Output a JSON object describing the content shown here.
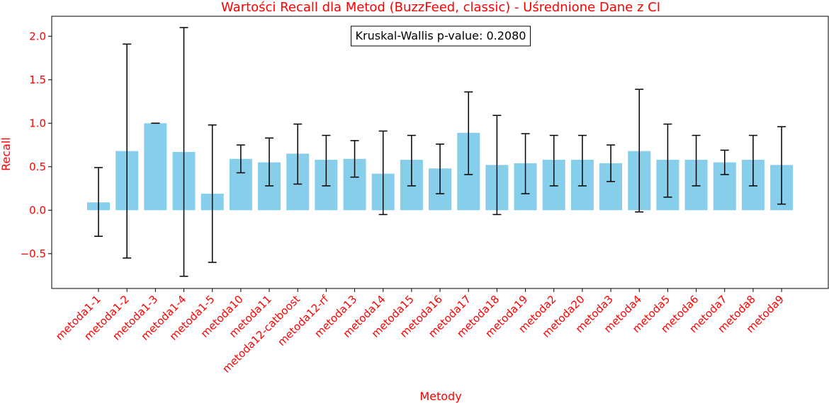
{
  "chart_data": {
    "type": "bar",
    "title": "Wartości Recall dla Metod (BuzzFeed, classic) - Uśrednione Dane z CI",
    "xlabel": "Metody",
    "ylabel": "Recall",
    "annotation": "Kruskal-Wallis p-value: 0.2080",
    "ylim": [
      -0.9,
      2.23
    ],
    "yticks": [
      -0.5,
      0.0,
      0.5,
      1.0,
      1.5,
      2.0
    ],
    "ytick_labels": [
      "−0.5",
      "0.0",
      "0.5",
      "1.0",
      "1.5",
      "2.0"
    ],
    "bar_color": "#87ceeb",
    "text_color": "#ff0000",
    "categories": [
      "metoda1-1",
      "metoda1-2",
      "metoda1-3",
      "metoda1-4",
      "metoda1-5",
      "metoda10",
      "metoda11",
      "metoda12-catboost",
      "metoda12-rf",
      "metoda13",
      "metoda14",
      "metoda15",
      "metoda16",
      "metoda17",
      "metoda18",
      "metoda19",
      "metoda2",
      "metoda20",
      "metoda3",
      "metoda4",
      "metoda5",
      "metoda6",
      "metoda7",
      "metoda8",
      "metoda9"
    ],
    "values": [
      0.09,
      0.68,
      1.0,
      0.67,
      0.19,
      0.59,
      0.55,
      0.65,
      0.58,
      0.59,
      0.42,
      0.58,
      0.48,
      0.89,
      0.52,
      0.54,
      0.58,
      0.58,
      0.54,
      0.68,
      0.58,
      0.58,
      0.55,
      0.58,
      0.52
    ],
    "ci_low": [
      -0.3,
      -0.55,
      1.0,
      -0.76,
      -0.6,
      0.43,
      0.28,
      0.3,
      0.28,
      0.38,
      -0.05,
      0.28,
      0.19,
      0.41,
      -0.05,
      0.19,
      0.28,
      0.28,
      0.33,
      -0.02,
      0.15,
      0.28,
      0.41,
      0.28,
      0.07
    ],
    "ci_high": [
      0.49,
      1.91,
      1.0,
      2.1,
      0.98,
      0.75,
      0.83,
      0.99,
      0.86,
      0.8,
      0.91,
      0.86,
      0.76,
      1.36,
      1.09,
      0.88,
      0.86,
      0.86,
      0.75,
      1.39,
      0.99,
      0.86,
      0.69,
      0.86,
      0.96
    ]
  }
}
